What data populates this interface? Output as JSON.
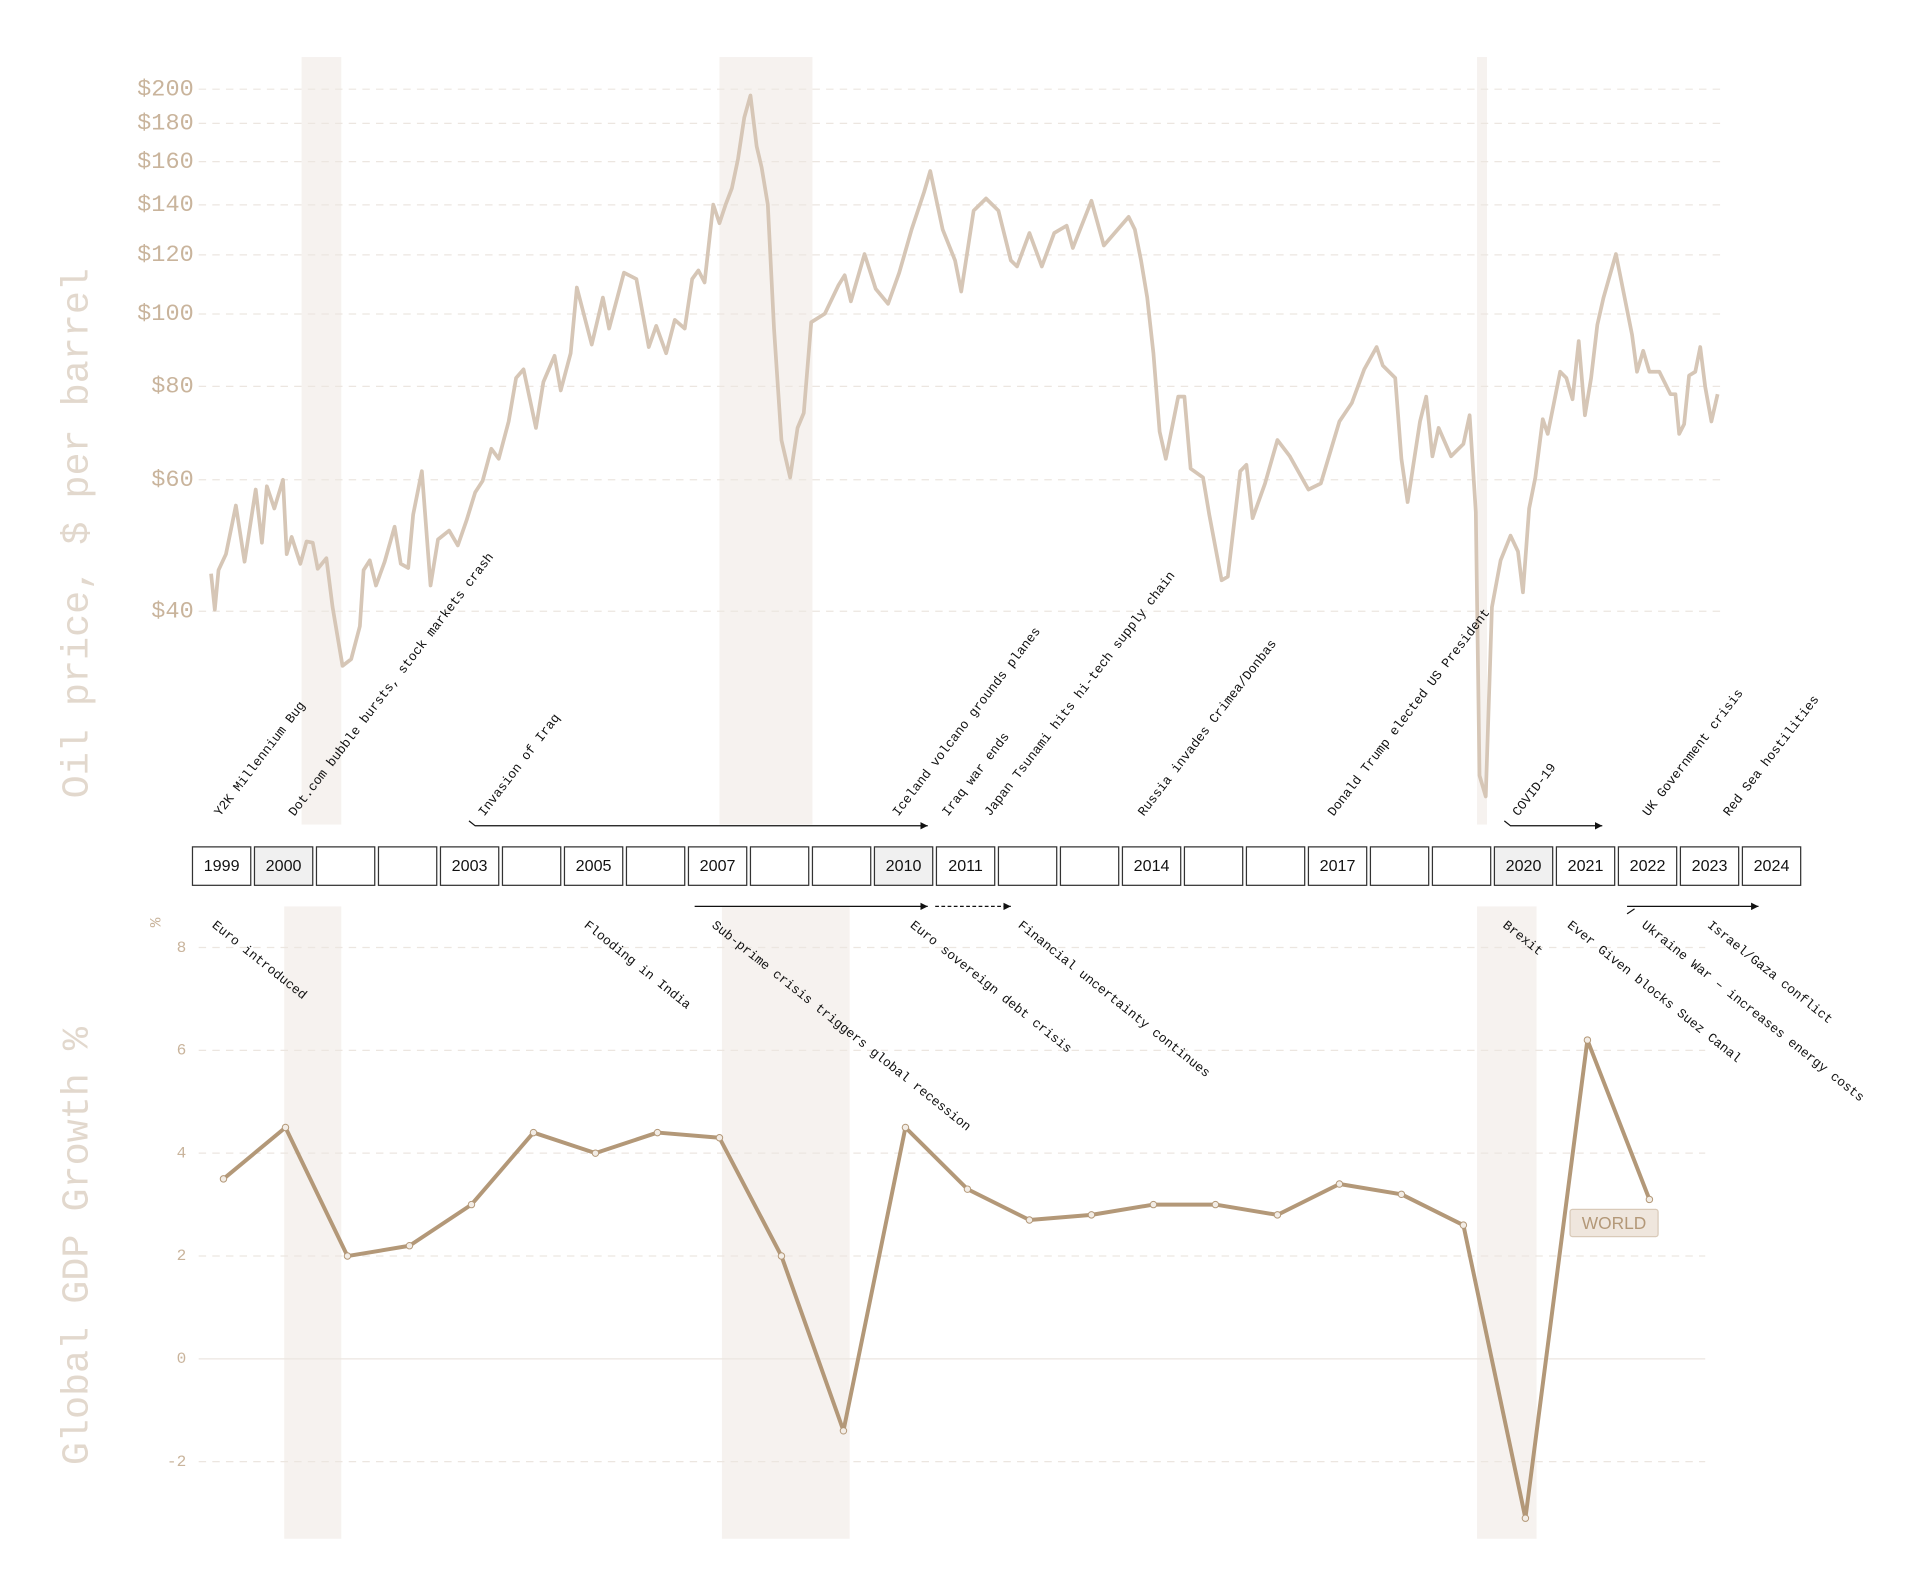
{
  "chart_data": [
    {
      "type": "line",
      "y_axis_label": "Oil price, $ per barrel",
      "log_scale": true,
      "grid": true,
      "xlim": [
        1998.7,
        2024.7
      ],
      "ylim": [
        21,
        220
      ],
      "yticks": [
        {
          "value": 40,
          "label": "$40"
        },
        {
          "value": 60,
          "label": "$60"
        },
        {
          "value": 80,
          "label": "$80"
        },
        {
          "value": 100,
          "label": "$100"
        },
        {
          "value": 120,
          "label": "$120"
        },
        {
          "value": 140,
          "label": "$140"
        },
        {
          "value": 160,
          "label": "$160"
        },
        {
          "value": 180,
          "label": "$180"
        },
        {
          "value": 200,
          "label": "$200"
        }
      ],
      "shaded_periods": [
        [
          2000.46,
          2001.1
        ],
        [
          2007.2,
          2008.7
        ],
        [
          2019.42,
          2019.58
        ]
      ],
      "series": [
        {
          "color": "#d6c6b6",
          "x": [
            1999,
            1999.06,
            1999.12,
            1999.24,
            1999.4,
            1999.54,
            1999.72,
            1999.82,
            1999.9,
            2000.02,
            2000.16,
            2000.22,
            2000.3,
            2000.44,
            2000.54,
            2000.64,
            2000.72,
            2000.86,
            2000.96,
            2001.12,
            2001.26,
            2001.4,
            2001.46,
            2001.56,
            2001.66,
            2001.8,
            2001.96,
            2002.06,
            2002.18,
            2002.26,
            2002.4,
            2002.54,
            2002.66,
            2002.84,
            2002.98,
            2003.12,
            2003.26,
            2003.38,
            2003.52,
            2003.64,
            2003.8,
            2003.92,
            2004.04,
            2004.24,
            2004.36,
            2004.54,
            2004.64,
            2004.8,
            2004.9,
            2005.14,
            2005.32,
            2005.42,
            2005.66,
            2005.86,
            2006.06,
            2006.18,
            2006.34,
            2006.48,
            2006.64,
            2006.76,
            2006.86,
            2006.96,
            2007.1,
            2007.2,
            2007.3,
            2007.4,
            2007.5,
            2007.6,
            2007.7,
            2007.8,
            2007.88,
            2007.98,
            2008.08,
            2008.2,
            2008.34,
            2008.46,
            2008.56,
            2008.68,
            2008.9,
            2009.12,
            2009.22,
            2009.32,
            2009.54,
            2009.72,
            2009.92,
            2010.1,
            2010.3,
            2010.5,
            2010.6,
            2010.8,
            2011,
            2011.1,
            2011.3,
            2011.5,
            2011.7,
            2011.9,
            2012,
            2012.2,
            2012.4,
            2012.6,
            2012.8,
            2012.9,
            2013.2,
            2013.4,
            2013.8,
            2013.9,
            2014,
            2014.1,
            2014.2,
            2014.3,
            2014.4,
            2014.6,
            2014.7,
            2014.8,
            2015,
            2015.1,
            2015.3,
            2015.4,
            2015.6,
            2015.7,
            2015.8,
            2016,
            2016.2,
            2016.4,
            2016.7,
            2016.9,
            2017.2,
            2017.4,
            2017.6,
            2017.8,
            2017.9,
            2018.1,
            2018.2,
            2018.3,
            2018.5,
            2018.6,
            2018.7,
            2018.8,
            2019,
            2019.2,
            2019.3,
            2019.4,
            2019.46,
            2019.56,
            2019.66,
            2019.8,
            2019.96,
            2020.08,
            2020.16,
            2020.26,
            2020.36,
            2020.48,
            2020.56,
            2020.66,
            2020.76,
            2020.86,
            2020.96,
            2021.06,
            2021.16,
            2021.26,
            2021.36,
            2021.46,
            2021.66,
            2021.92,
            2022,
            2022.1,
            2022.2,
            2022.36,
            2022.54,
            2022.62,
            2022.68,
            2022.76,
            2022.84,
            2022.94,
            2023.02,
            2023.1,
            2023.2,
            2023.3
          ],
          "values": [
            44.9,
            40.2,
            45.4,
            47.7,
            55.4,
            46.6,
            58.2,
            49.4,
            58.8,
            54.9,
            60.0,
            47.7,
            50.3,
            46.3,
            49.6,
            49.4,
            45.6,
            47.1,
            40.5,
            33.8,
            34.5,
            38.2,
            45.4,
            46.8,
            43.3,
            46.6,
            51.9,
            46.3,
            45.7,
            53.9,
            61.6,
            43.3,
            49.9,
            51.3,
            49.0,
            52.9,
            57.7,
            59.8,
            66.0,
            64.0,
            71.8,
            82.1,
            84.3,
            70.4,
            81.1,
            87.9,
            79.0,
            88.6,
            108.5,
            91.0,
            105.2,
            95.6,
            113.6,
            111.4,
            90.3,
            96.4,
            88.6,
            98.2,
            95.6,
            111.4,
            114.4,
            110.2,
            140.1,
            132.3,
            140.1,
            147.3,
            161.4,
            183.2,
            196.2,
            167.7,
            157.2,
            140.1,
            95.6,
            67.8,
            60.4,
            70.4,
            73.7,
            97.5,
            100.1,
            109.3,
            112.7,
            104.0,
            120.3,
            108.1,
            103.2,
            113.6,
            129.8,
            145.6,
            155.4,
            129.8,
            118.0,
            107.2,
            137.5,
            142.8,
            137.5,
            118.0,
            115.8,
            128.4,
            115.8,
            128.4,
            131.3,
            122.6,
            141.8,
            123.5,
            134.9,
            129.8,
            118.0,
            105.2,
            88.6,
            69.6,
            64.0,
            77.5,
            77.5,
            62.1,
            60.4,
            53.9,
            44.0,
            44.5,
            61.6,
            62.8,
            53.3,
            59.3,
            67.8,
            64.5,
            58.2,
            59.3,
            71.8,
            76.0,
            84.3,
            90.3,
            85.3,
            82.1,
            64.0,
            56.0,
            71.8,
            77.5,
            64.5,
            70.4,
            64.5,
            67.0,
            73.2,
            54.3,
            24.1,
            22.6,
            40.5,
            46.8,
            50.5,
            48.1,
            42.4,
            54.9,
            60.4,
            72.3,
            69.1,
            76.0,
            83.7,
            82.1,
            76.9,
            92.0,
            73.2,
            82.1,
            96.7,
            105.2,
            120.3,
            93.8,
            83.7,
            89.3,
            83.7,
            83.7,
            78.1,
            78.1,
            69.1,
            71.2,
            82.7,
            83.7,
            90.3,
            79.9,
            71.8,
            78.1
          ]
        }
      ],
      "annotations": [
        "Y2K Millennium Bug",
        "Dot.com bubble bursts, stock markets crash",
        "Invasion of Iraq",
        "Iceland volcano grounds planes",
        "Iraq war ends",
        "Japan Tsunami hits hi-tech supply chain",
        "Russia invades Crimea/Donbas",
        "Donald Trump elected US President",
        "COVID-19",
        "UK Government crisis",
        "Red Sea hostilities"
      ]
    },
    {
      "type": "line",
      "y_axis_label": "Global GDP Growth %",
      "unit": "%",
      "grid": true,
      "xlim": [
        1998.5,
        2024.5
      ],
      "ylim": [
        -3.5,
        8.8
      ],
      "yticks": [
        -2,
        0,
        2,
        4,
        6,
        8
      ],
      "shaded_periods": [
        [
          1999.98,
          2000.9
        ],
        [
          2007.04,
          2009.1
        ],
        [
          2019.22,
          2020.18
        ]
      ],
      "series": [
        {
          "name": "WORLD",
          "color": "#b39878",
          "x": [
            1999,
            2000,
            2001,
            2002,
            2003,
            2004,
            2005,
            2006,
            2007,
            2008,
            2009,
            2010,
            2011,
            2012,
            2013,
            2014,
            2015,
            2016,
            2017,
            2018,
            2019,
            2020,
            2021,
            2022
          ],
          "values": [
            3.5,
            4.5,
            2.0,
            2.2,
            3.0,
            4.4,
            4.0,
            4.4,
            4.3,
            2.0,
            -1.4,
            4.5,
            3.3,
            2.7,
            2.8,
            3.0,
            3.0,
            2.8,
            3.4,
            3.2,
            2.6,
            -3.1,
            6.2,
            3.1
          ]
        }
      ],
      "annotations": [
        "Euro introduced",
        "Flooding in India",
        "Sub-prime crisis triggers global recession",
        "Euro sovereign debt crisis",
        "Financial uncertainty continues",
        "Brexit",
        "Ever Given blocks Suez Canal",
        "Ukraine War – increases energy costs",
        "Israel/Gaza conflict"
      ]
    }
  ],
  "timeline": {
    "categories": [
      "1999",
      "2000",
      null,
      null,
      "2003",
      null,
      "2005",
      null,
      "2007",
      null,
      null,
      "2010",
      "2011",
      null,
      null,
      "2014",
      null,
      null,
      "2017",
      null,
      null,
      "2020",
      "2021",
      "2022",
      "2023",
      "2024"
    ]
  }
}
